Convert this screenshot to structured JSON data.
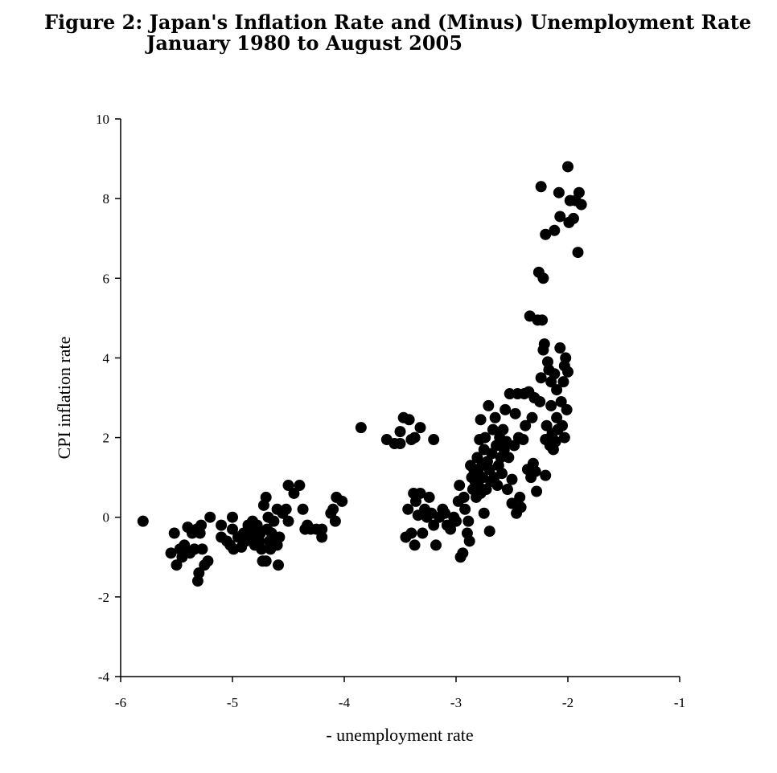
{
  "chart_data": {
    "type": "scatter",
    "title": "Figure 2: Japan's Inflation Rate and (Minus) Unemployment Rate",
    "subtitle": "January 1980 to August 2005",
    "xlabel": "- unemployment rate",
    "ylabel": "CPI inflation rate",
    "xlim": [
      -6,
      -1
    ],
    "ylim": [
      -4,
      10
    ],
    "xticks": [
      -6,
      -5,
      -4,
      -3,
      -2,
      -1
    ],
    "yticks": [
      -4,
      -2,
      0,
      2,
      4,
      6,
      8,
      10
    ],
    "xtick_labels": [
      "-6",
      "-5",
      "-4",
      "-3",
      "-2",
      "-1"
    ],
    "ytick_labels": [
      "-4",
      "-2",
      "0",
      "2",
      "4",
      "6",
      "8",
      "10"
    ],
    "grid": false,
    "marker_color": "#000000",
    "points": [
      [
        -5.8,
        -0.1
      ],
      [
        -5.55,
        -0.9
      ],
      [
        -5.52,
        -0.4
      ],
      [
        -5.5,
        -1.2
      ],
      [
        -5.47,
        -0.8
      ],
      [
        -5.45,
        -1.0
      ],
      [
        -5.43,
        -0.7
      ],
      [
        -5.4,
        -0.25
      ],
      [
        -5.38,
        -0.9
      ],
      [
        -5.36,
        -0.4
      ],
      [
        -5.34,
        -0.8
      ],
      [
        -5.32,
        -0.3
      ],
      [
        -5.31,
        -1.6
      ],
      [
        -5.3,
        -1.4
      ],
      [
        -5.29,
        -0.4
      ],
      [
        -5.28,
        -0.2
      ],
      [
        -5.27,
        -0.8
      ],
      [
        -5.25,
        -1.2
      ],
      [
        -5.22,
        -1.1
      ],
      [
        -5.2,
        0.0
      ],
      [
        -5.1,
        -0.2
      ],
      [
        -5.1,
        -0.5
      ],
      [
        -5.05,
        -0.6
      ],
      [
        -5.02,
        -0.7
      ],
      [
        -5.0,
        -0.3
      ],
      [
        -4.99,
        -0.8
      ],
      [
        -5.0,
        0.0
      ],
      [
        -4.95,
        -0.5
      ],
      [
        -4.92,
        -0.75
      ],
      [
        -4.9,
        -0.4
      ],
      [
        -4.88,
        -0.6
      ],
      [
        -4.86,
        -0.2
      ],
      [
        -4.85,
        -0.3
      ],
      [
        -4.83,
        -0.4
      ],
      [
        -4.82,
        -0.1
      ],
      [
        -4.8,
        -0.5
      ],
      [
        -4.8,
        -0.7
      ],
      [
        -4.78,
        -0.2
      ],
      [
        -4.76,
        -0.6
      ],
      [
        -4.75,
        -0.4
      ],
      [
        -4.74,
        -0.8
      ],
      [
        -4.73,
        -1.1
      ],
      [
        -4.72,
        0.3
      ],
      [
        -4.7,
        0.5
      ],
      [
        -4.7,
        -1.1
      ],
      [
        -4.69,
        -0.3
      ],
      [
        -4.68,
        0.0
      ],
      [
        -4.67,
        -0.6
      ],
      [
        -4.66,
        -0.8
      ],
      [
        -4.65,
        -0.4
      ],
      [
        -4.63,
        -0.1
      ],
      [
        -4.62,
        -0.5
      ],
      [
        -4.6,
        -0.7
      ],
      [
        -4.6,
        0.2
      ],
      [
        -4.59,
        -1.2
      ],
      [
        -4.58,
        -0.5
      ],
      [
        -4.55,
        0.1
      ],
      [
        -4.52,
        0.2
      ],
      [
        -4.5,
        -0.1
      ],
      [
        -4.5,
        0.8
      ],
      [
        -4.45,
        0.6
      ],
      [
        -4.4,
        0.8
      ],
      [
        -4.37,
        0.2
      ],
      [
        -4.35,
        -0.3
      ],
      [
        -4.33,
        -0.2
      ],
      [
        -4.3,
        -0.3
      ],
      [
        -4.25,
        -0.3
      ],
      [
        -4.2,
        -0.5
      ],
      [
        -4.2,
        -0.3
      ],
      [
        -4.12,
        0.1
      ],
      [
        -4.1,
        0.2
      ],
      [
        -4.08,
        -0.1
      ],
      [
        -4.07,
        0.5
      ],
      [
        -4.02,
        0.4
      ],
      [
        -3.85,
        2.25
      ],
      [
        -3.62,
        1.95
      ],
      [
        -3.55,
        1.85
      ],
      [
        -3.5,
        2.15
      ],
      [
        -3.5,
        1.85
      ],
      [
        -3.47,
        2.5
      ],
      [
        -3.42,
        2.45
      ],
      [
        -3.4,
        1.95
      ],
      [
        -3.37,
        2.0
      ],
      [
        -3.32,
        2.25
      ],
      [
        -3.2,
        1.95
      ],
      [
        -3.45,
        -0.5
      ],
      [
        -3.43,
        0.2
      ],
      [
        -3.4,
        -0.4
      ],
      [
        -3.38,
        0.6
      ],
      [
        -3.37,
        -0.7
      ],
      [
        -3.36,
        0.4
      ],
      [
        -3.34,
        0.05
      ],
      [
        -3.32,
        0.6
      ],
      [
        -3.3,
        -0.4
      ],
      [
        -3.28,
        0.2
      ],
      [
        -3.26,
        0.0
      ],
      [
        -3.24,
        0.5
      ],
      [
        -3.22,
        0.1
      ],
      [
        -3.2,
        -0.2
      ],
      [
        -3.18,
        -0.7
      ],
      [
        -3.15,
        0.0
      ],
      [
        -3.12,
        0.2
      ],
      [
        -3.1,
        0.1
      ],
      [
        -3.08,
        -0.2
      ],
      [
        -3.05,
        -0.3
      ],
      [
        -3.02,
        0.0
      ],
      [
        -3.0,
        -0.1
      ],
      [
        -2.98,
        0.4
      ],
      [
        -2.97,
        0.8
      ],
      [
        -2.96,
        -1.0
      ],
      [
        -2.94,
        -0.9
      ],
      [
        -2.93,
        0.5
      ],
      [
        -2.92,
        0.2
      ],
      [
        -2.9,
        -0.4
      ],
      [
        -2.89,
        -0.1
      ],
      [
        -2.88,
        -0.6
      ],
      [
        -2.87,
        1.3
      ],
      [
        -2.86,
        1.0
      ],
      [
        -2.85,
        0.7
      ],
      [
        -2.84,
        1.2
      ],
      [
        -2.83,
        0.9
      ],
      [
        -2.82,
        0.5
      ],
      [
        -2.81,
        1.5
      ],
      [
        -2.8,
        1.1
      ],
      [
        -2.8,
        0.8
      ],
      [
        -2.79,
        1.95
      ],
      [
        -2.78,
        2.45
      ],
      [
        -2.78,
        0.6
      ],
      [
        -2.77,
        1.3
      ],
      [
        -2.76,
        1.0
      ],
      [
        -2.75,
        0.1
      ],
      [
        -2.75,
        1.7
      ],
      [
        -2.74,
        2.0
      ],
      [
        -2.73,
        0.7
      ],
      [
        -2.72,
        1.4
      ],
      [
        -2.71,
        2.8
      ],
      [
        -2.7,
        1.2
      ],
      [
        -2.7,
        -0.35
      ],
      [
        -2.69,
        0.9
      ],
      [
        -2.68,
        1.6
      ],
      [
        -2.67,
        2.2
      ],
      [
        -2.66,
        1.0
      ],
      [
        -2.65,
        2.5
      ],
      [
        -2.64,
        1.8
      ],
      [
        -2.63,
        0.8
      ],
      [
        -2.62,
        1.3
      ],
      [
        -2.61,
        2.0
      ],
      [
        -2.6,
        1.5
      ],
      [
        -2.59,
        1.1
      ],
      [
        -2.58,
        2.2
      ],
      [
        -2.57,
        1.7
      ],
      [
        -2.56,
        2.7
      ],
      [
        -2.55,
        1.9
      ],
      [
        -2.54,
        0.7
      ],
      [
        -2.53,
        1.5
      ],
      [
        -2.52,
        3.1
      ],
      [
        -2.5,
        0.35
      ],
      [
        -2.5,
        0.95
      ],
      [
        -2.48,
        1.8
      ],
      [
        -2.47,
        2.6
      ],
      [
        -2.46,
        0.1
      ],
      [
        -2.45,
        3.1
      ],
      [
        -2.44,
        2.0
      ],
      [
        -2.43,
        0.5
      ],
      [
        -2.42,
        0.25
      ],
      [
        -2.4,
        1.95
      ],
      [
        -2.39,
        3.1
      ],
      [
        -2.38,
        2.3
      ],
      [
        -2.36,
        1.2
      ],
      [
        -2.35,
        3.15
      ],
      [
        -2.34,
        5.05
      ],
      [
        -2.33,
        1.0
      ],
      [
        -2.32,
        2.5
      ],
      [
        -2.31,
        1.35
      ],
      [
        -2.3,
        3.0
      ],
      [
        -2.29,
        1.15
      ],
      [
        -2.28,
        0.65
      ],
      [
        -2.27,
        4.95
      ],
      [
        -2.26,
        6.15
      ],
      [
        -2.25,
        2.9
      ],
      [
        -2.24,
        3.5
      ],
      [
        -2.24,
        8.3
      ],
      [
        -2.23,
        4.95
      ],
      [
        -2.22,
        6.0
      ],
      [
        -2.22,
        4.2
      ],
      [
        -2.21,
        4.35
      ],
      [
        -2.2,
        1.05
      ],
      [
        -2.2,
        1.95
      ],
      [
        -2.2,
        7.1
      ],
      [
        -2.19,
        2.3
      ],
      [
        -2.18,
        3.9
      ],
      [
        -2.17,
        3.7
      ],
      [
        -2.16,
        1.8
      ],
      [
        -2.15,
        3.4
      ],
      [
        -2.15,
        2.8
      ],
      [
        -2.14,
        2.1
      ],
      [
        -2.13,
        1.7
      ],
      [
        -2.12,
        3.6
      ],
      [
        -2.11,
        1.9
      ],
      [
        -2.1,
        2.5
      ],
      [
        -2.1,
        3.2
      ],
      [
        -2.09,
        2.2
      ],
      [
        -2.08,
        8.15
      ],
      [
        -2.07,
        7.55
      ],
      [
        -2.07,
        4.25
      ],
      [
        -2.06,
        2.9
      ],
      [
        -2.05,
        2.3
      ],
      [
        -2.04,
        3.4
      ],
      [
        -2.03,
        2.0
      ],
      [
        -2.03,
        3.8
      ],
      [
        -2.02,
        4.0
      ],
      [
        -2.01,
        2.7
      ],
      [
        -2.0,
        3.65
      ],
      [
        -2.0,
        8.8
      ],
      [
        -1.99,
        7.4
      ],
      [
        -1.98,
        7.95
      ],
      [
        -1.95,
        7.5
      ],
      [
        -1.93,
        7.95
      ],
      [
        -1.91,
        6.65
      ],
      [
        -1.9,
        8.15
      ],
      [
        -1.88,
        7.85
      ],
      [
        -2.12,
        7.2
      ]
    ]
  }
}
